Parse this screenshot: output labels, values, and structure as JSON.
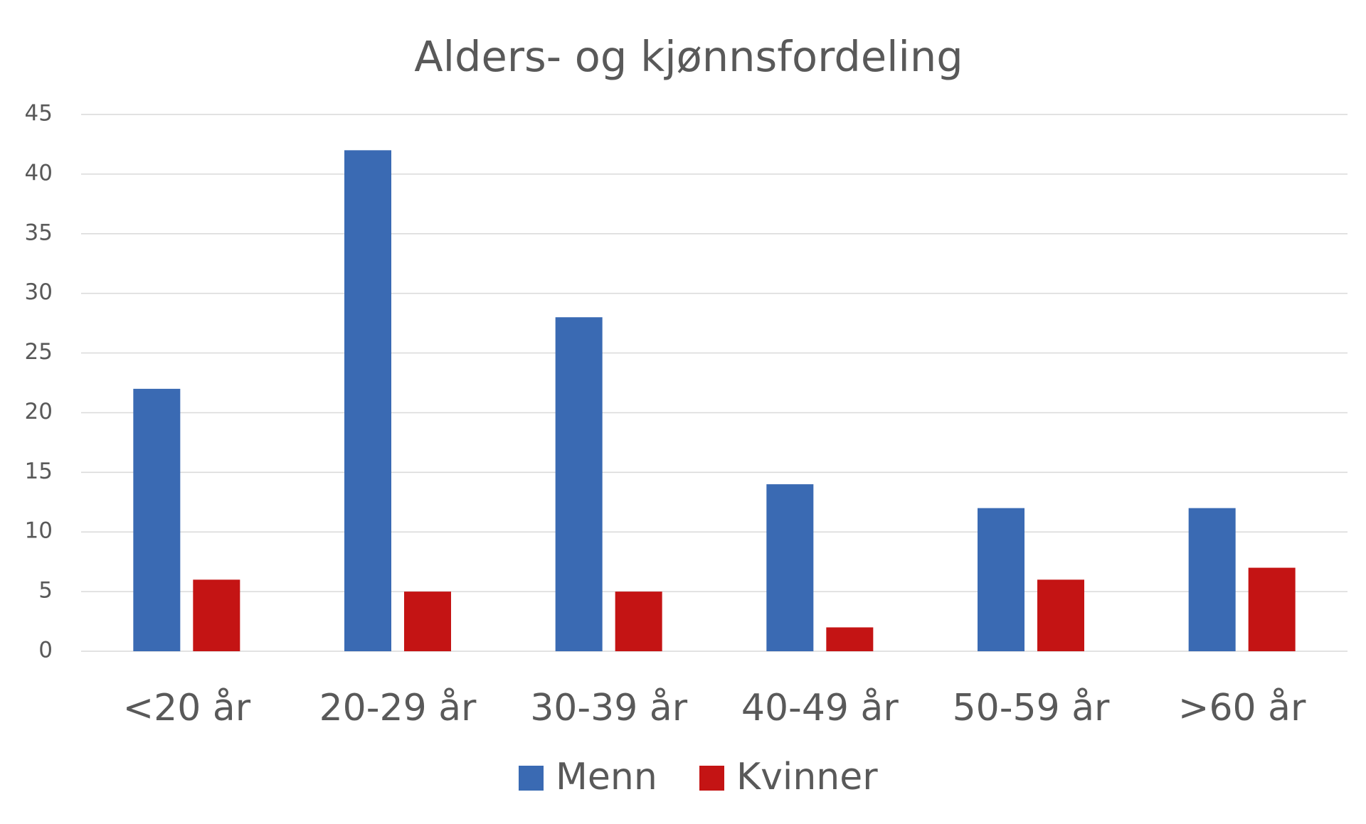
{
  "chart_data": {
    "type": "bar",
    "title": "Alders- og kjønnsfordeling",
    "categories": [
      "<20 år",
      "20-29 år",
      "30-39 år",
      "40-49 år",
      "50-59 år",
      ">60 år"
    ],
    "series": [
      {
        "name": "Menn",
        "color": "#3a6ab3",
        "values": [
          22,
          42,
          28,
          14,
          12,
          12
        ]
      },
      {
        "name": "Kvinner",
        "color": "#c41414",
        "values": [
          6,
          5,
          5,
          2,
          6,
          7
        ]
      }
    ],
    "ylim": [
      0,
      45
    ],
    "yticks": [
      0,
      5,
      10,
      15,
      20,
      25,
      30,
      35,
      40,
      45
    ],
    "grid": true,
    "legend": "bottom"
  }
}
